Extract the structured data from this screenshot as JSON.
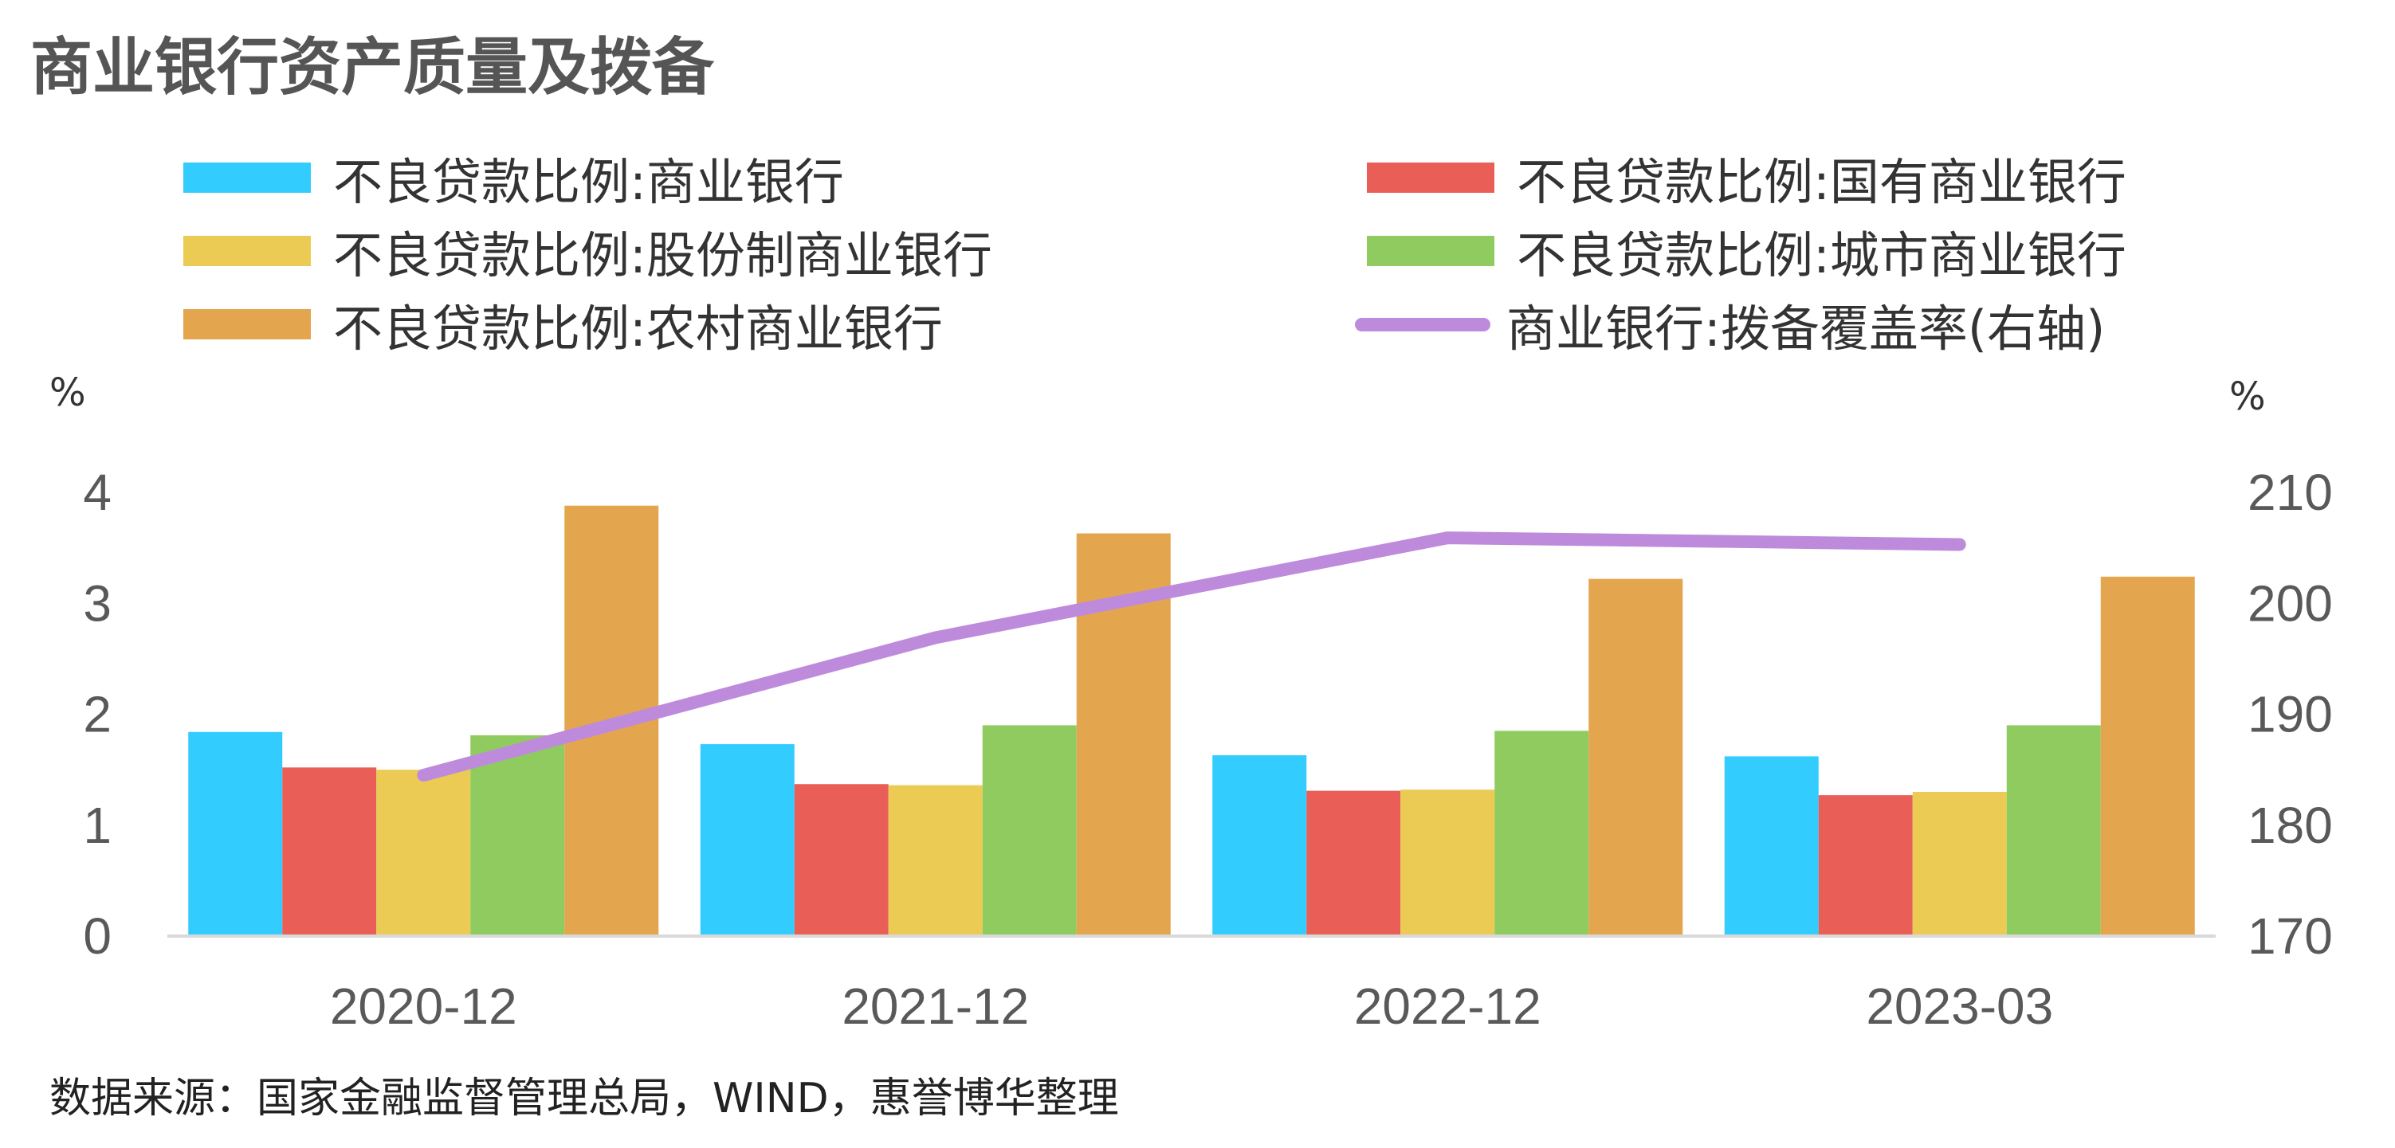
{
  "title": "商业银行资产质量及拨备",
  "left_unit": "%",
  "right_unit": "%",
  "source": "数据来源：国家金融监督管理总局，WIND，惠誉博华整理",
  "legend": [
    {
      "label": "不良贷款比例:商业银行",
      "kind": "bar",
      "color": "#33CCFF"
    },
    {
      "label": "不良贷款比例:国有商业银行",
      "kind": "bar",
      "color": "#E95F57"
    },
    {
      "label": "不良贷款比例:股份制商业银行",
      "kind": "bar",
      "color": "#EBCB54"
    },
    {
      "label": "不良贷款比例:城市商业银行",
      "kind": "bar",
      "color": "#8FCB5E"
    },
    {
      "label": "不良贷款比例:农村商业银行",
      "kind": "bar",
      "color": "#E4A54F"
    },
    {
      "label": "商业银行:拨备覆盖率(右轴)",
      "kind": "line",
      "color": "#BE8BDC"
    }
  ],
  "chart_data": {
    "type": "bar",
    "categories": [
      "2020-12",
      "2021-12",
      "2022-12",
      "2023-03"
    ],
    "y_ticks": [
      "0",
      "1",
      "2",
      "3",
      "4"
    ],
    "y2_ticks": [
      "170",
      "180",
      "190",
      "200",
      "210"
    ],
    "ylim": [
      0,
      4
    ],
    "y2lim": [
      170,
      210
    ],
    "legend_position": "top",
    "grid": false,
    "series": [
      {
        "name": "不良贷款比例:商业银行",
        "axis": "left",
        "color": "#33CCFF",
        "values": [
          1.84,
          1.73,
          1.63,
          1.62
        ]
      },
      {
        "name": "不良贷款比例:国有商业银行",
        "axis": "left",
        "color": "#E95F57",
        "values": [
          1.52,
          1.37,
          1.31,
          1.27
        ]
      },
      {
        "name": "不良贷款比例:股份制商业银行",
        "axis": "left",
        "color": "#EBCB54",
        "values": [
          1.5,
          1.36,
          1.32,
          1.3
        ]
      },
      {
        "name": "不良贷款比例:城市商业银行",
        "axis": "left",
        "color": "#8FCB5E",
        "values": [
          1.81,
          1.9,
          1.85,
          1.9
        ]
      },
      {
        "name": "不良贷款比例:农村商业银行",
        "axis": "left",
        "color": "#E4A54F",
        "values": [
          3.88,
          3.63,
          3.22,
          3.24
        ]
      },
      {
        "name": "商业银行:拨备覆盖率(右轴)",
        "axis": "right",
        "type": "line",
        "color": "#BE8BDC",
        "values": [
          184.5,
          196.9,
          205.9,
          205.3
        ]
      }
    ]
  }
}
